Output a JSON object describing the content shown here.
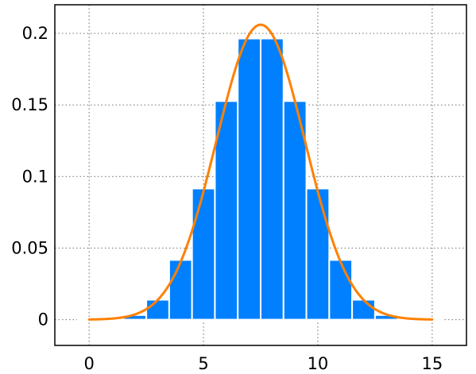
{
  "chart_data": {
    "type": "bar",
    "title": "",
    "xlabel": "",
    "ylabel": "",
    "xlim": [
      -1.5,
      16.5
    ],
    "ylim": [
      -0.018,
      0.22
    ],
    "grid": true,
    "x_ticks": [
      {
        "value": 0,
        "label": "0"
      },
      {
        "value": 5,
        "label": "5"
      },
      {
        "value": 10,
        "label": "10"
      },
      {
        "value": 15,
        "label": "15"
      }
    ],
    "y_ticks": [
      {
        "value": 0,
        "label": "0"
      },
      {
        "value": 0.05,
        "label": "0.05"
      },
      {
        "value": 0.1,
        "label": "0.1"
      },
      {
        "value": 0.15,
        "label": "0.15"
      },
      {
        "value": 0.2,
        "label": "0.2"
      }
    ],
    "bars": {
      "color": "#0080ff",
      "x": [
        0,
        1,
        2,
        3,
        4,
        5,
        6,
        7,
        8,
        9,
        10,
        11,
        12,
        13,
        14,
        15
      ],
      "values": [
        3e-05,
        0.0005,
        0.0032,
        0.0139,
        0.0417,
        0.0916,
        0.1527,
        0.1964,
        0.1964,
        0.1527,
        0.0916,
        0.0417,
        0.0139,
        0.0032,
        0.0005,
        3e-05
      ]
    },
    "curve": {
      "type": "line",
      "color": "#ff8000",
      "mean": 7.5,
      "sd": 1.936,
      "x_range": [
        0,
        15
      ]
    }
  }
}
